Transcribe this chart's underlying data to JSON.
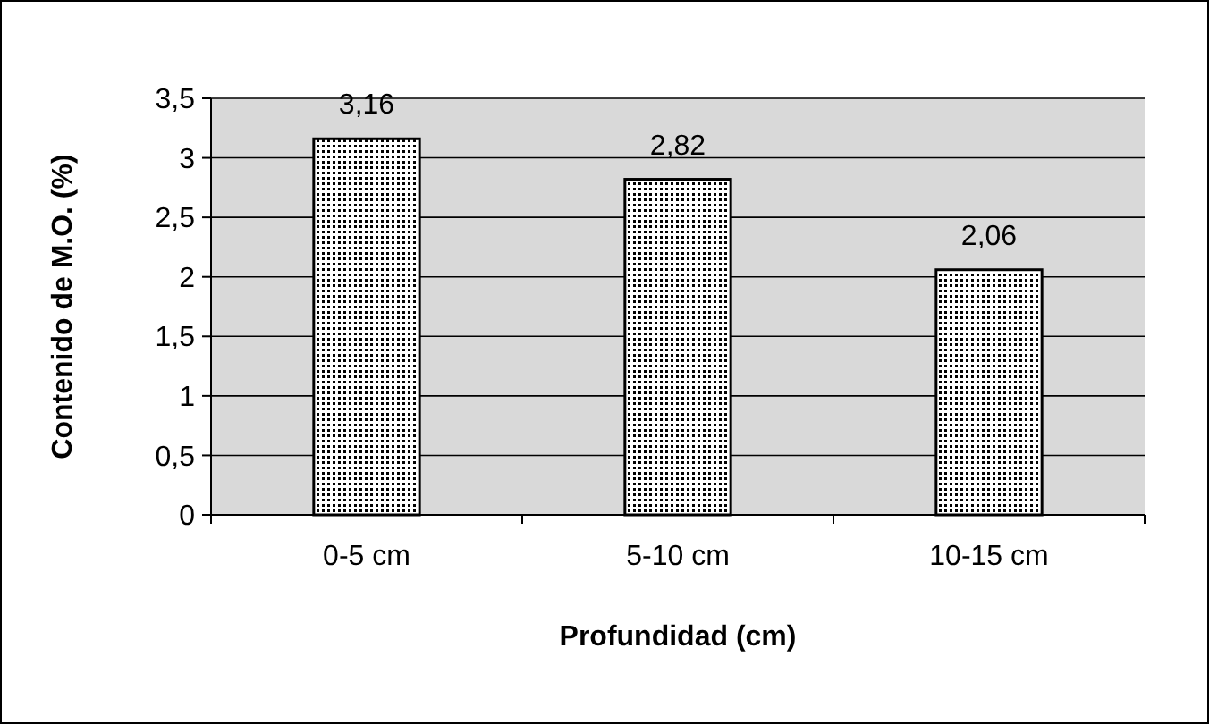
{
  "chart_data": {
    "type": "bar",
    "xlabel": "Profundidad (cm)",
    "ylabel": "Contenido de M.O. (%)",
    "categories": [
      "0-5 cm",
      "5-10 cm",
      "10-15 cm"
    ],
    "values": [
      3.16,
      2.82,
      2.06
    ],
    "value_labels": [
      "3,16",
      "2,82",
      "2,06"
    ],
    "color": "#000000",
    "ylim": [
      0,
      3.5
    ],
    "yticks": [
      0,
      {
        "value": 0.5,
        "label": "0,5"
      },
      1,
      {
        "value": 1.5,
        "label": "1,5"
      },
      2,
      {
        "value": 2.5,
        "label": "2,5"
      },
      3,
      {
        "value": 3.5,
        "label": "3,5"
      }
    ],
    "grid": "y"
  }
}
